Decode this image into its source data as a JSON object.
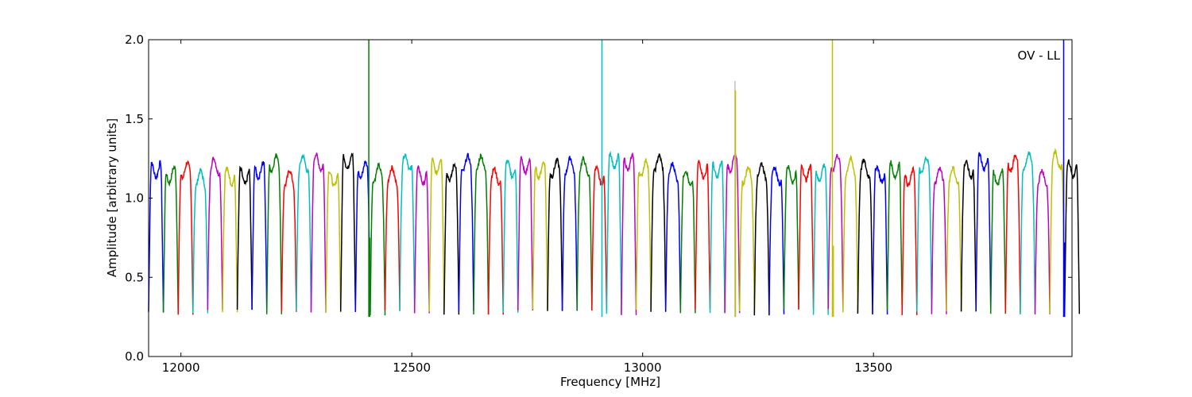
{
  "chart_data": {
    "type": "line",
    "title": "",
    "annotation": "OV - LL",
    "xlabel": "Frequency [MHz]",
    "ylabel": "Amplitude [arbitrary units]",
    "xlim": [
      11930,
      13930
    ],
    "ylim": [
      0.0,
      2.0
    ],
    "xticks": [
      12000,
      12500,
      13000,
      13500
    ],
    "yticks": [
      0.0,
      0.5,
      1.0,
      1.5,
      2.0
    ],
    "xtick_labels": [
      "12000",
      "12500",
      "13000",
      "13500"
    ],
    "ytick_labels": [
      "0.0",
      "0.5",
      "1.0",
      "1.5",
      "2.0"
    ],
    "grid": false,
    "legend": false,
    "color_cycle": [
      "#0000ff",
      "#008000",
      "#ff0000",
      "#00bfbf",
      "#bf00bf",
      "#bfbf00",
      "#000000"
    ],
    "subband_width_mhz": 32,
    "subband_start_mhz": 11930,
    "subband_count": 63,
    "typical_plateau": 1.17,
    "typical_trough": 0.28,
    "spikes": [
      {
        "x": 12407,
        "y": 2.0,
        "color": "#008000"
      },
      {
        "x": 12409,
        "y": 0.75,
        "color": "#008000"
      },
      {
        "x": 12912,
        "y": 2.0,
        "color": "#00bfbf"
      },
      {
        "x": 13200,
        "y": 1.74,
        "color": "#bfbfbf"
      },
      {
        "x": 13201,
        "y": 1.68,
        "color": "#bfbf00"
      },
      {
        "x": 13411,
        "y": 2.0,
        "color": "#bfbf00"
      },
      {
        "x": 13413,
        "y": 0.7,
        "color": "#bfbf00"
      },
      {
        "x": 13912,
        "y": 2.0,
        "color": "#0000ff"
      },
      {
        "x": 13914,
        "y": 0.72,
        "color": "#0000ff"
      }
    ]
  }
}
